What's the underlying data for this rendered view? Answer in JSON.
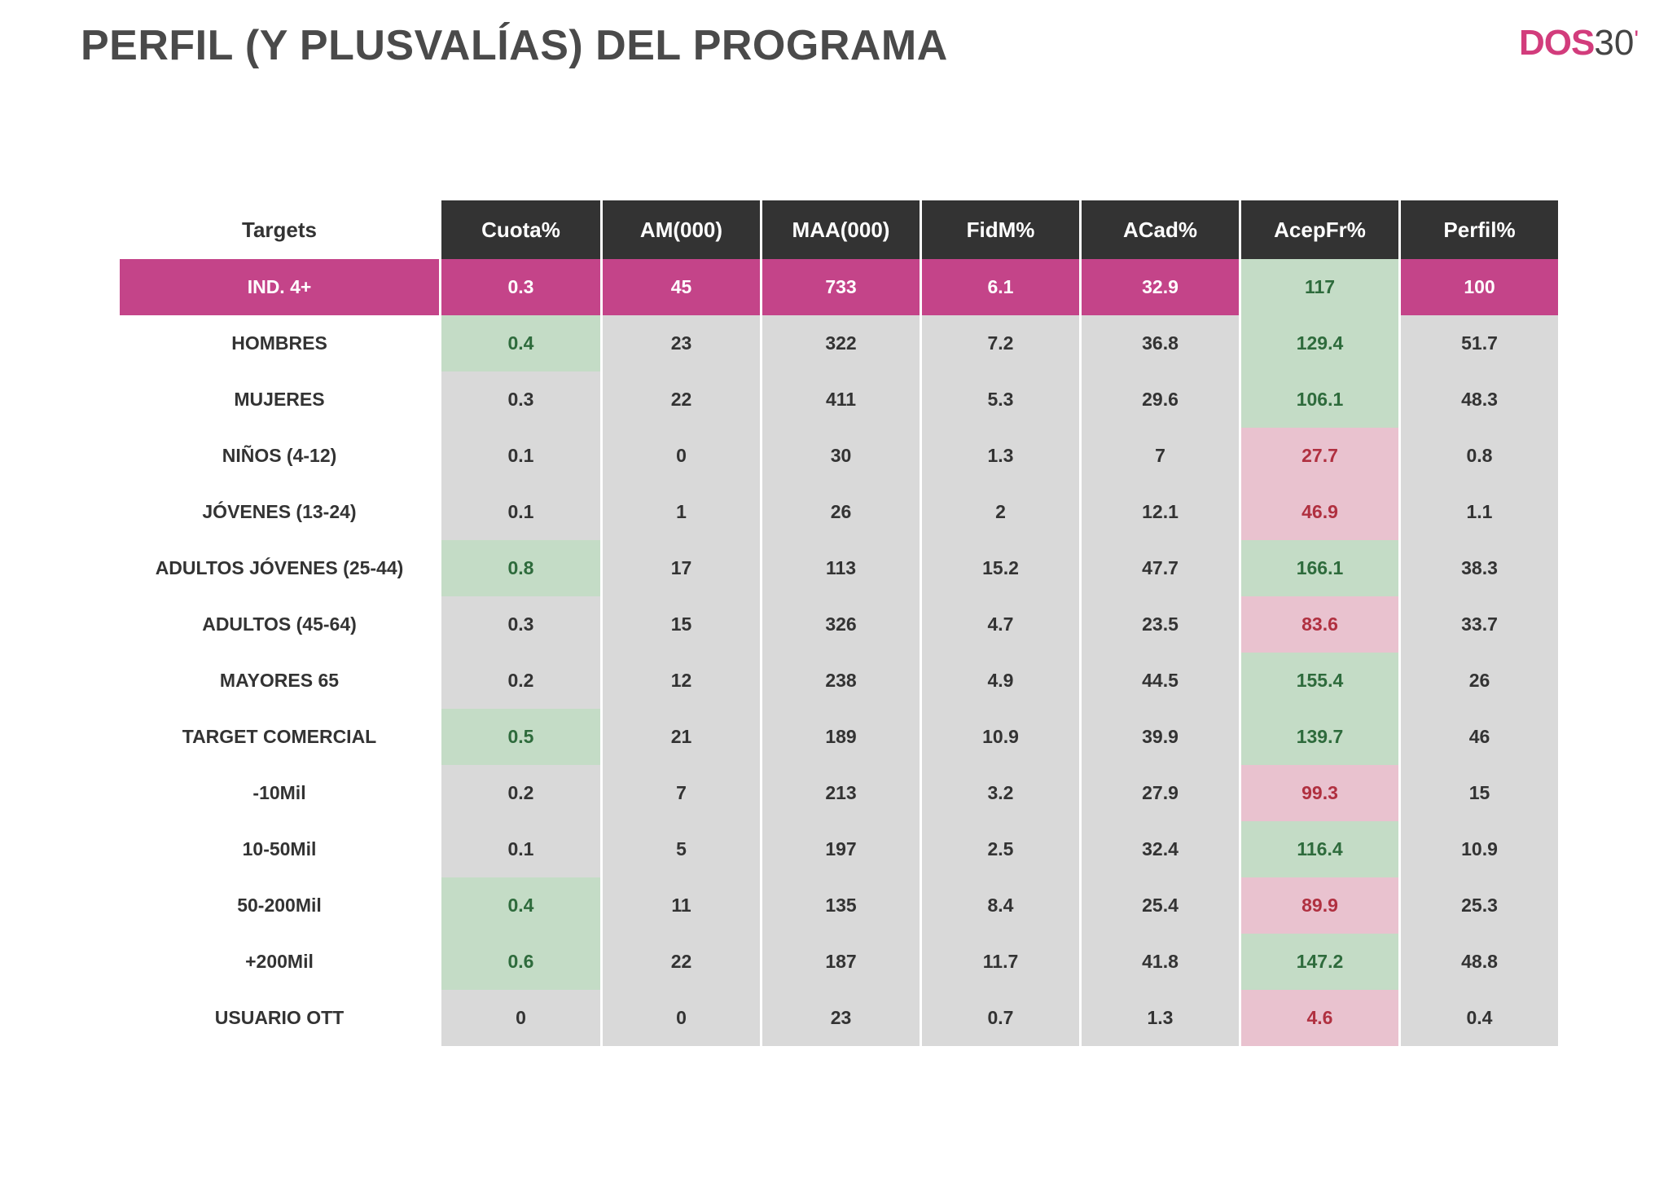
{
  "page": {
    "title": "PERFIL (Y PLUSVALÍAS) DEL PROGRAMA",
    "logo": {
      "dos": "DOS",
      "thirty": "30",
      "tick": "'"
    }
  },
  "table": {
    "columns": [
      "Targets",
      "Cuota%",
      "AM(000)",
      "MAA(000)",
      "FidM%",
      "ACad%",
      "AcepFr%",
      "Perfil%"
    ],
    "highlight_colors": {
      "main": "#c44489",
      "good": "#c4dcc6",
      "bad": "#e9c2cf",
      "header": "#333333",
      "cell": "#d9d9d9"
    },
    "rows": [
      {
        "target": "IND. 4+",
        "values": [
          "0.3",
          "45",
          "733",
          "6.1",
          "32.9",
          "117",
          "100"
        ],
        "marks": [
          "",
          "",
          "",
          "",
          "",
          "good",
          ""
        ]
      },
      {
        "target": "HOMBRES",
        "values": [
          "0.4",
          "23",
          "322",
          "7.2",
          "36.8",
          "129.4",
          "51.7"
        ],
        "marks": [
          "good",
          "",
          "",
          "",
          "",
          "good",
          ""
        ]
      },
      {
        "target": "MUJERES",
        "values": [
          "0.3",
          "22",
          "411",
          "5.3",
          "29.6",
          "106.1",
          "48.3"
        ],
        "marks": [
          "",
          "",
          "",
          "",
          "",
          "good",
          ""
        ]
      },
      {
        "target": "NIÑOS (4-12)",
        "values": [
          "0.1",
          "0",
          "30",
          "1.3",
          "7",
          "27.7",
          "0.8"
        ],
        "marks": [
          "",
          "",
          "",
          "",
          "",
          "bad",
          ""
        ]
      },
      {
        "target": "JÓVENES (13-24)",
        "values": [
          "0.1",
          "1",
          "26",
          "2",
          "12.1",
          "46.9",
          "1.1"
        ],
        "marks": [
          "",
          "",
          "",
          "",
          "",
          "bad",
          ""
        ]
      },
      {
        "target": "ADULTOS JÓVENES (25-44)",
        "values": [
          "0.8",
          "17",
          "113",
          "15.2",
          "47.7",
          "166.1",
          "38.3"
        ],
        "marks": [
          "good",
          "",
          "",
          "",
          "",
          "good",
          ""
        ]
      },
      {
        "target": "ADULTOS (45-64)",
        "values": [
          "0.3",
          "15",
          "326",
          "4.7",
          "23.5",
          "83.6",
          "33.7"
        ],
        "marks": [
          "",
          "",
          "",
          "",
          "",
          "bad",
          ""
        ]
      },
      {
        "target": "MAYORES 65",
        "values": [
          "0.2",
          "12",
          "238",
          "4.9",
          "44.5",
          "155.4",
          "26"
        ],
        "marks": [
          "",
          "",
          "",
          "",
          "",
          "good",
          ""
        ]
      },
      {
        "target": "TARGET COMERCIAL",
        "values": [
          "0.5",
          "21",
          "189",
          "10.9",
          "39.9",
          "139.7",
          "46"
        ],
        "marks": [
          "good",
          "",
          "",
          "",
          "",
          "good",
          ""
        ]
      },
      {
        "target": "-10Mil",
        "values": [
          "0.2",
          "7",
          "213",
          "3.2",
          "27.9",
          "99.3",
          "15"
        ],
        "marks": [
          "",
          "",
          "",
          "",
          "",
          "bad",
          ""
        ]
      },
      {
        "target": "10-50Mil",
        "values": [
          "0.1",
          "5",
          "197",
          "2.5",
          "32.4",
          "116.4",
          "10.9"
        ],
        "marks": [
          "",
          "",
          "",
          "",
          "",
          "good",
          ""
        ]
      },
      {
        "target": "50-200Mil",
        "values": [
          "0.4",
          "11",
          "135",
          "8.4",
          "25.4",
          "89.9",
          "25.3"
        ],
        "marks": [
          "good",
          "",
          "",
          "",
          "",
          "bad",
          ""
        ]
      },
      {
        "target": "+200Mil",
        "values": [
          "0.6",
          "22",
          "187",
          "11.7",
          "41.8",
          "147.2",
          "48.8"
        ],
        "marks": [
          "good",
          "",
          "",
          "",
          "",
          "good",
          ""
        ]
      },
      {
        "target": "USUARIO OTT",
        "values": [
          "0",
          "0",
          "23",
          "0.7",
          "1.3",
          "4.6",
          "0.4"
        ],
        "marks": [
          "",
          "",
          "",
          "",
          "",
          "bad",
          ""
        ]
      }
    ]
  }
}
